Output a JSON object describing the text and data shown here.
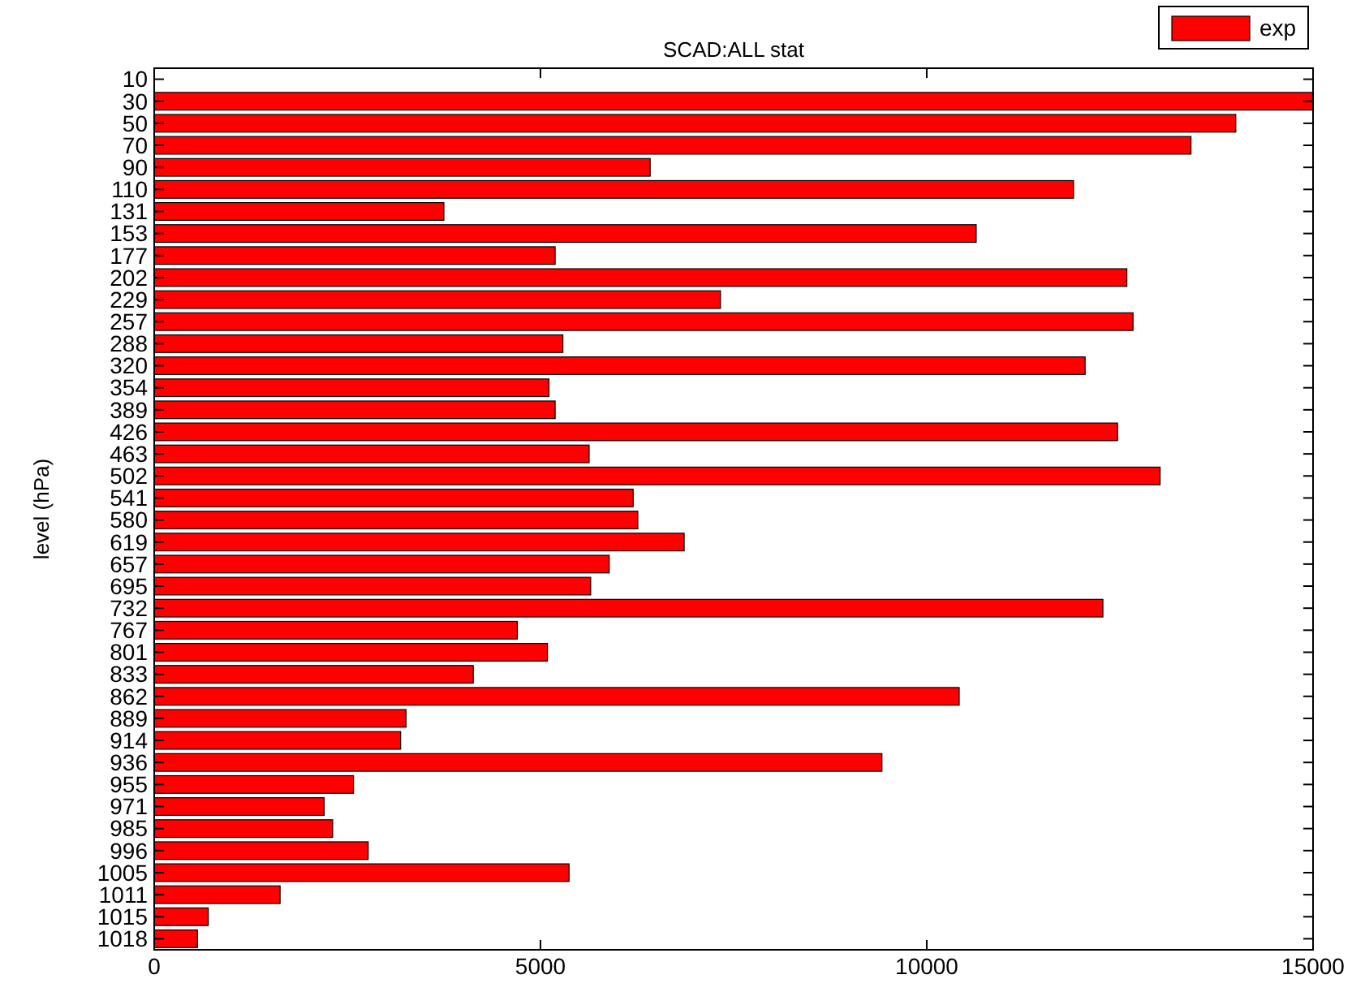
{
  "chart_data": {
    "type": "bar",
    "orientation": "horizontal",
    "title": "SCAD:ALL stat",
    "ylabel": "level (hPa)",
    "categories": [
      "10",
      "30",
      "50",
      "70",
      "90",
      "110",
      "131",
      "153",
      "177",
      "202",
      "229",
      "257",
      "288",
      "320",
      "354",
      "389",
      "426",
      "463",
      "502",
      "541",
      "580",
      "619",
      "657",
      "695",
      "732",
      "767",
      "801",
      "833",
      "862",
      "889",
      "914",
      "936",
      "955",
      "971",
      "985",
      "996",
      "1005",
      "1011",
      "1015",
      "1018"
    ],
    "series": [
      {
        "name": "exp",
        "color": "#ff0000",
        "values": [
          0,
          15000,
          14000,
          13420,
          6420,
          11900,
          3750,
          10640,
          5190,
          12590,
          7330,
          12670,
          5290,
          12050,
          5110,
          5190,
          12470,
          5630,
          13020,
          6200,
          6260,
          6860,
          5890,
          5650,
          12280,
          4700,
          5090,
          4130,
          10420,
          3260,
          3190,
          9420,
          2580,
          2200,
          2310,
          2770,
          5370,
          1630,
          700,
          560
        ]
      }
    ],
    "xlim": [
      0,
      15000
    ],
    "xticks": [
      0,
      5000,
      10000,
      15000
    ],
    "legend": "top right",
    "grid": false
  }
}
